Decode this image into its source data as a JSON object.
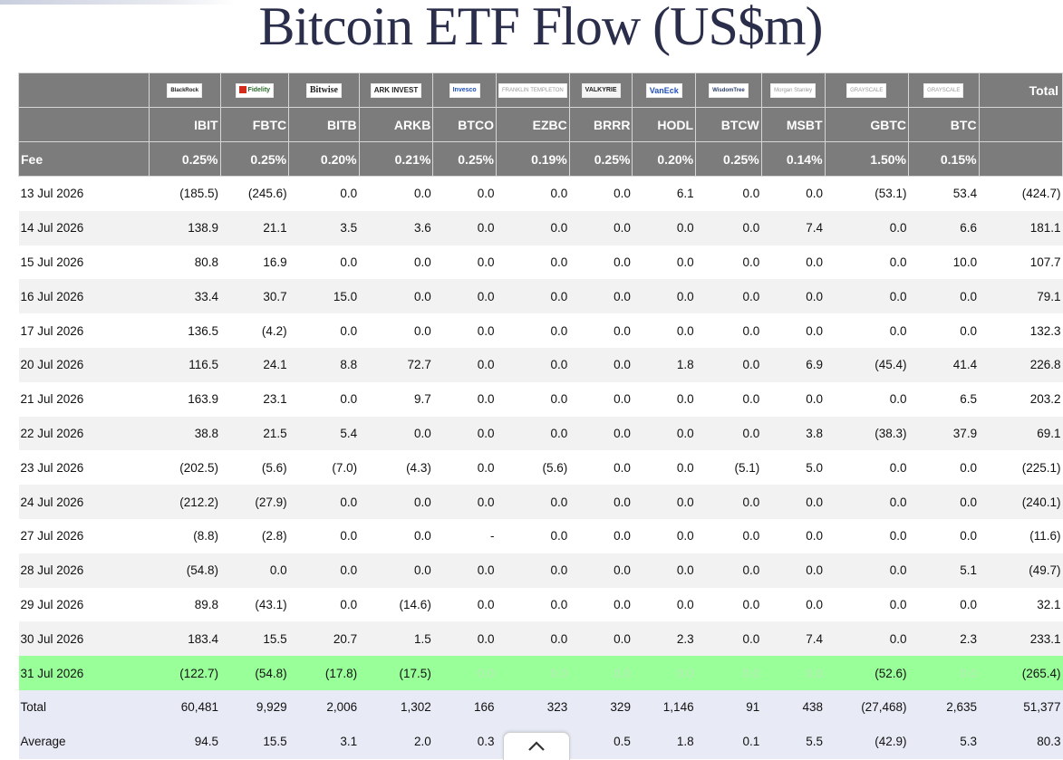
{
  "page": {
    "title": "Bitcoin ETF Flow (US$m)"
  },
  "issuers": [
    {
      "name": "BlackRock",
      "style": "blackrock"
    },
    {
      "name": "Fidelity",
      "style": "fidelity"
    },
    {
      "name": "Bitwise",
      "style": "bitwise"
    },
    {
      "name": "ARK INVEST",
      "style": "ark"
    },
    {
      "name": "Invesco",
      "style": "invesco"
    },
    {
      "name": "FRANKLIN TEMPLETON",
      "style": "gray"
    },
    {
      "name": "VALKYRIE",
      "style": "valkyrie"
    },
    {
      "name": "VanEck",
      "style": "vaneck"
    },
    {
      "name": "WisdomTree",
      "style": "wisdom"
    },
    {
      "name": "Morgan Stanley",
      "style": "gray"
    },
    {
      "name": "GRAYSCALE",
      "style": "gray"
    },
    {
      "name": "GRAYSCALE",
      "style": "gray"
    }
  ],
  "header": {
    "total_label": "Total",
    "fee_label": "Fee"
  },
  "tickers": [
    "IBIT",
    "FBTC",
    "BITB",
    "ARKB",
    "BTCO",
    "EZBC",
    "BRRR",
    "HODL",
    "BTCW",
    "MSBT",
    "GBTC",
    "BTC"
  ],
  "fees": [
    "0.25%",
    "0.25%",
    "0.20%",
    "0.21%",
    "0.25%",
    "0.19%",
    "0.25%",
    "0.20%",
    "0.25%",
    "0.14%",
    "1.50%",
    "0.15%"
  ],
  "rows": [
    {
      "date": "13 Jul 2026",
      "values": [
        "(185.5)",
        "(245.6)",
        "0.0",
        "0.0",
        "0.0",
        "0.0",
        "0.0",
        "6.1",
        "0.0",
        "0.0",
        "(53.1)",
        "53.4"
      ],
      "total": "(424.7)"
    },
    {
      "date": "14 Jul 2026",
      "values": [
        "138.9",
        "21.1",
        "3.5",
        "3.6",
        "0.0",
        "0.0",
        "0.0",
        "0.0",
        "0.0",
        "7.4",
        "0.0",
        "6.6"
      ],
      "total": "181.1"
    },
    {
      "date": "15 Jul 2026",
      "values": [
        "80.8",
        "16.9",
        "0.0",
        "0.0",
        "0.0",
        "0.0",
        "0.0",
        "0.0",
        "0.0",
        "0.0",
        "0.0",
        "10.0"
      ],
      "total": "107.7"
    },
    {
      "date": "16 Jul 2026",
      "values": [
        "33.4",
        "30.7",
        "15.0",
        "0.0",
        "0.0",
        "0.0",
        "0.0",
        "0.0",
        "0.0",
        "0.0",
        "0.0",
        "0.0"
      ],
      "total": "79.1"
    },
    {
      "date": "17 Jul 2026",
      "values": [
        "136.5",
        "(4.2)",
        "0.0",
        "0.0",
        "0.0",
        "0.0",
        "0.0",
        "0.0",
        "0.0",
        "0.0",
        "0.0",
        "0.0"
      ],
      "total": "132.3"
    },
    {
      "date": "20 Jul 2026",
      "values": [
        "116.5",
        "24.1",
        "8.8",
        "72.7",
        "0.0",
        "0.0",
        "0.0",
        "1.8",
        "0.0",
        "6.9",
        "(45.4)",
        "41.4"
      ],
      "total": "226.8"
    },
    {
      "date": "21 Jul 2026",
      "values": [
        "163.9",
        "23.1",
        "0.0",
        "9.7",
        "0.0",
        "0.0",
        "0.0",
        "0.0",
        "0.0",
        "0.0",
        "0.0",
        "6.5"
      ],
      "total": "203.2"
    },
    {
      "date": "22 Jul 2026",
      "values": [
        "38.8",
        "21.5",
        "5.4",
        "0.0",
        "0.0",
        "0.0",
        "0.0",
        "0.0",
        "0.0",
        "3.8",
        "(38.3)",
        "37.9"
      ],
      "total": "69.1"
    },
    {
      "date": "23 Jul 2026",
      "values": [
        "(202.5)",
        "(5.6)",
        "(7.0)",
        "(4.3)",
        "0.0",
        "(5.6)",
        "0.0",
        "0.0",
        "(5.1)",
        "5.0",
        "0.0",
        "0.0"
      ],
      "total": "(225.1)"
    },
    {
      "date": "24 Jul 2026",
      "values": [
        "(212.2)",
        "(27.9)",
        "0.0",
        "0.0",
        "0.0",
        "0.0",
        "0.0",
        "0.0",
        "0.0",
        "0.0",
        "0.0",
        "0.0"
      ],
      "total": "(240.1)"
    },
    {
      "date": "27 Jul 2026",
      "values": [
        "(8.8)",
        "(2.8)",
        "0.0",
        "0.0",
        "-",
        "0.0",
        "0.0",
        "0.0",
        "0.0",
        "0.0",
        "0.0",
        "0.0"
      ],
      "total": "(11.6)"
    },
    {
      "date": "28 Jul 2026",
      "values": [
        "(54.8)",
        "0.0",
        "0.0",
        "0.0",
        "0.0",
        "0.0",
        "0.0",
        "0.0",
        "0.0",
        "0.0",
        "0.0",
        "5.1"
      ],
      "total": "(49.7)"
    },
    {
      "date": "29 Jul 2026",
      "values": [
        "89.8",
        "(43.1)",
        "0.0",
        "(14.6)",
        "0.0",
        "0.0",
        "0.0",
        "0.0",
        "0.0",
        "0.0",
        "0.0",
        "0.0"
      ],
      "total": "32.1"
    },
    {
      "date": "30 Jul 2026",
      "values": [
        "183.4",
        "15.5",
        "20.7",
        "1.5",
        "0.0",
        "0.0",
        "0.0",
        "2.3",
        "0.0",
        "7.4",
        "0.0",
        "2.3"
      ],
      "total": "233.1"
    },
    {
      "date": "31 Jul 2026",
      "values": [
        "(122.7)",
        "(54.8)",
        "(17.8)",
        "(17.5)",
        "0.0",
        "0.0",
        "0.0",
        "0.0",
        "0.0",
        "0.0",
        "(52.6)",
        "0.0"
      ],
      "total": "(265.4)",
      "highlight": true
    }
  ],
  "summary": [
    {
      "label": "Total",
      "values": [
        "60,481",
        "9,929",
        "2,006",
        "1,302",
        "166",
        "323",
        "329",
        "1,146",
        "91",
        "438",
        "(27,468)",
        "2,635"
      ],
      "total": "51,377"
    },
    {
      "label": "Average",
      "values": [
        "94.5",
        "15.5",
        "3.1",
        "2.0",
        "0.3",
        "",
        "0.5",
        "1.8",
        "0.1",
        "5.5",
        "(42.9)",
        "5.3"
      ],
      "total": "80.3"
    }
  ],
  "colors": {
    "header_bg": "#7c7c7c",
    "negative": "#e00000",
    "zero": "#c5c5c5",
    "highlight_row": "#99ff99",
    "summary_bg": "#e8ebf6",
    "title": "#2b2e4a"
  },
  "scroll_button": {
    "icon": "chevron-up-icon"
  }
}
